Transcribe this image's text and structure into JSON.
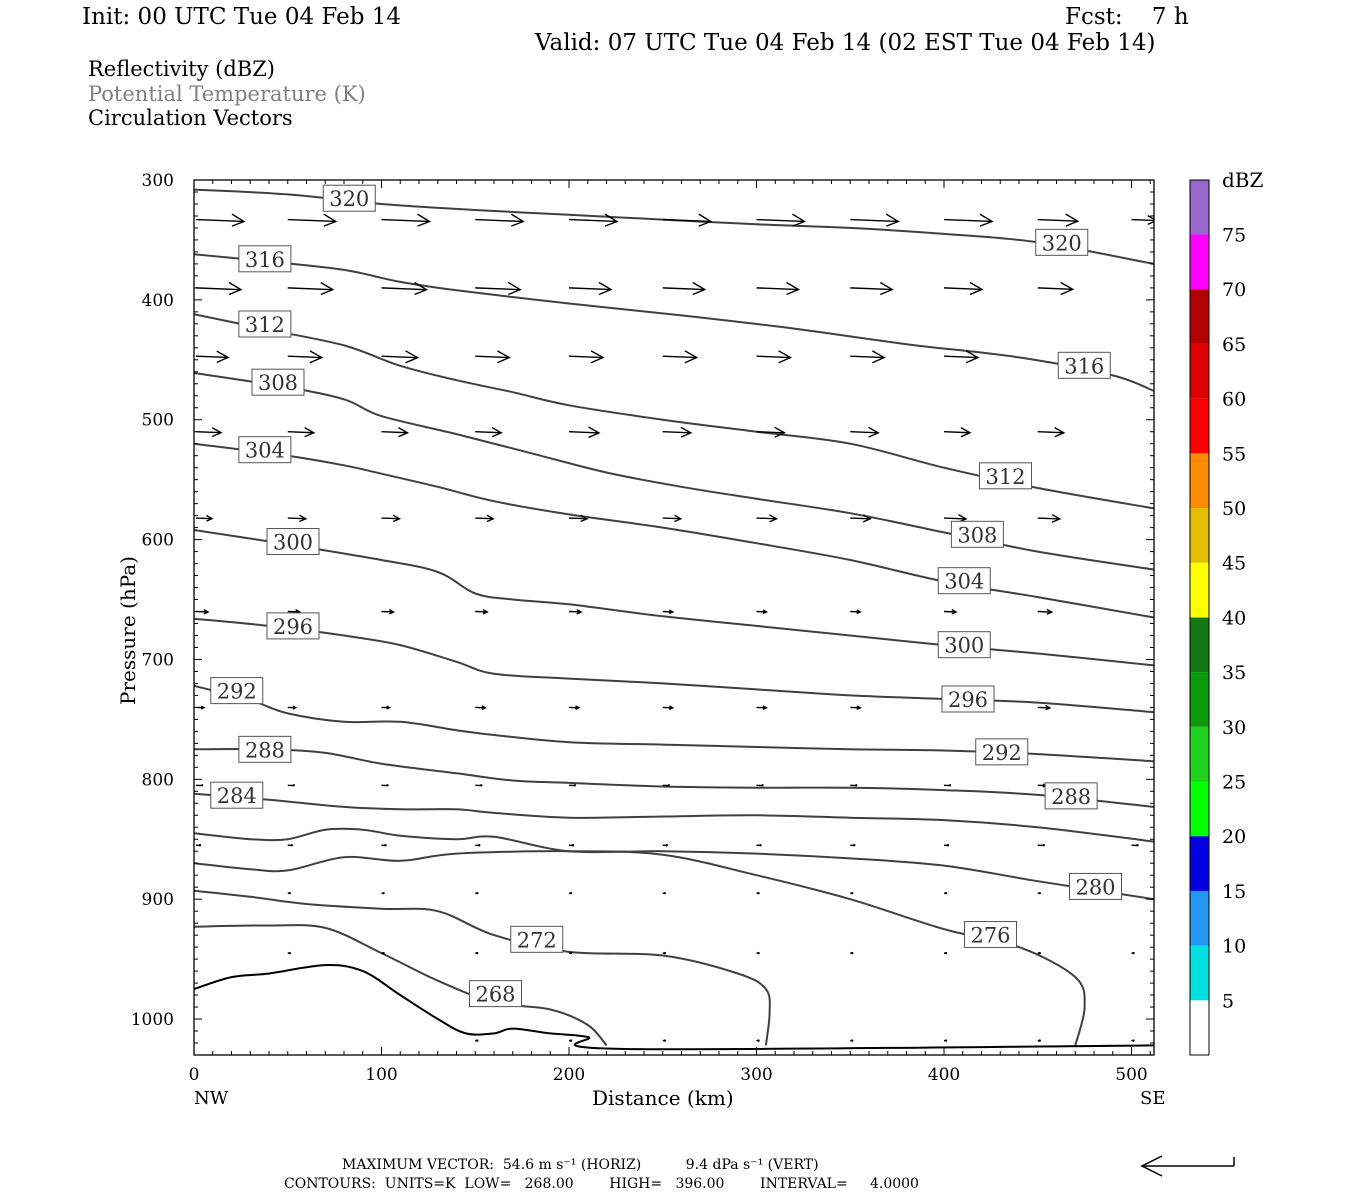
{
  "header": {
    "init": "Init: 00 UTC Tue 04 Feb 14",
    "fcst": "Fcst:    7 h",
    "valid": "Valid: 07 UTC Tue 04 Feb 14 (02 EST Tue 04 Feb 14)",
    "field1": "Reflectivity (dBZ)",
    "field2": "Potential Temperature (K)",
    "field3": "Circulation Vectors"
  },
  "footer": {
    "line1": "MAXIMUM VECTOR:  54.6 m s⁻¹ (HORIZ)          9.4 dPa s⁻¹ (VERT)",
    "line2": "CONTOURS:  UNITS=K  LOW=   268.00        HIGH=   396.00        INTERVAL=     4.0000"
  },
  "colors": {
    "contour": "#404040",
    "vector": "#000000",
    "label_gray": "#808080",
    "scale": [
      "#ffffff",
      "#00e0e0",
      "#2196f3",
      "#0000e0",
      "#00ff00",
      "#1ed21e",
      "#0a9a0a",
      "#147814",
      "#ffff00",
      "#e6be00",
      "#ff8c00",
      "#ff0000",
      "#dd0000",
      "#b40000",
      "#ff00ff",
      "#9966cc",
      "#ffffff"
    ]
  },
  "chart_data": {
    "type": "contour",
    "xlabel": "Distance (km)",
    "ylabel": "Pressure (hPa)",
    "xlim": [
      0,
      512
    ],
    "ylim": [
      1030,
      300
    ],
    "x_ticks": [
      "0",
      "100",
      "200",
      "300",
      "400",
      "500"
    ],
    "x_tick_values": [
      0,
      100,
      200,
      300,
      400,
      500
    ],
    "y_ticks": [
      "300",
      "400",
      "500",
      "600",
      "700",
      "800",
      "900",
      "1000"
    ],
    "y_tick_values": [
      300,
      400,
      500,
      600,
      700,
      800,
      900,
      1000
    ],
    "endpoints": {
      "left": "NW",
      "right": "SE"
    },
    "colorbar": {
      "title": "dBZ",
      "labels": [
        "5",
        "10",
        "15",
        "20",
        "25",
        "30",
        "35",
        "40",
        "45",
        "50",
        "55",
        "60",
        "65",
        "70",
        "75"
      ],
      "values": [
        5,
        10,
        15,
        20,
        25,
        30,
        35,
        40,
        45,
        50,
        55,
        60,
        65,
        70,
        75
      ]
    },
    "theta_contours": [
      {
        "level": 320,
        "points": [
          [
            0,
            308
          ],
          [
            50,
            312
          ],
          [
            100,
            320
          ],
          [
            150,
            325
          ],
          [
            200,
            329
          ],
          [
            250,
            333
          ],
          [
            300,
            337
          ],
          [
            350,
            340
          ],
          [
            400,
            345
          ],
          [
            450,
            352
          ],
          [
            512,
            370
          ]
        ]
      },
      {
        "level": 316,
        "points": [
          [
            0,
            362
          ],
          [
            40,
            368
          ],
          [
            80,
            375
          ],
          [
            110,
            385
          ],
          [
            140,
            392
          ],
          [
            200,
            403
          ],
          [
            260,
            413
          ],
          [
            320,
            424
          ],
          [
            380,
            437
          ],
          [
            440,
            448
          ],
          [
            490,
            463
          ],
          [
            512,
            476
          ]
        ]
      },
      {
        "level": 312,
        "points": [
          [
            0,
            412
          ],
          [
            40,
            425
          ],
          [
            80,
            438
          ],
          [
            110,
            455
          ],
          [
            140,
            467
          ],
          [
            170,
            477
          ],
          [
            200,
            488
          ],
          [
            250,
            500
          ],
          [
            300,
            510
          ],
          [
            350,
            520
          ],
          [
            400,
            540
          ],
          [
            450,
            557
          ],
          [
            512,
            574
          ]
        ]
      },
      {
        "level": 308,
        "points": [
          [
            0,
            461
          ],
          [
            50,
            473
          ],
          [
            80,
            483
          ],
          [
            100,
            497
          ],
          [
            140,
            512
          ],
          [
            180,
            528
          ],
          [
            220,
            544
          ],
          [
            260,
            556
          ],
          [
            300,
            566
          ],
          [
            350,
            578
          ],
          [
            400,
            594
          ],
          [
            450,
            610
          ],
          [
            512,
            625
          ]
        ]
      },
      {
        "level": 304,
        "points": [
          [
            0,
            520
          ],
          [
            50,
            530
          ],
          [
            80,
            538
          ],
          [
            100,
            545
          ],
          [
            130,
            556
          ],
          [
            160,
            568
          ],
          [
            200,
            579
          ],
          [
            250,
            590
          ],
          [
            300,
            603
          ],
          [
            350,
            617
          ],
          [
            400,
            635
          ],
          [
            450,
            648
          ],
          [
            512,
            665
          ]
        ]
      },
      {
        "level": 300,
        "points": [
          [
            0,
            592
          ],
          [
            50,
            604
          ],
          [
            100,
            617
          ],
          [
            130,
            627
          ],
          [
            150,
            645
          ],
          [
            170,
            650
          ],
          [
            200,
            654
          ],
          [
            250,
            664
          ],
          [
            300,
            672
          ],
          [
            350,
            680
          ],
          [
            400,
            688
          ],
          [
            450,
            695
          ],
          [
            512,
            705
          ]
        ]
      },
      {
        "level": 296,
        "points": [
          [
            0,
            666
          ],
          [
            40,
            672
          ],
          [
            80,
            680
          ],
          [
            110,
            688
          ],
          [
            140,
            702
          ],
          [
            160,
            712
          ],
          [
            200,
            716
          ],
          [
            250,
            720
          ],
          [
            300,
            725
          ],
          [
            350,
            730
          ],
          [
            400,
            733
          ],
          [
            450,
            736
          ],
          [
            512,
            744
          ]
        ]
      },
      {
        "level": 292,
        "points": [
          [
            0,
            722
          ],
          [
            30,
            734
          ],
          [
            50,
            745
          ],
          [
            80,
            752
          ],
          [
            110,
            752
          ],
          [
            140,
            759
          ],
          [
            160,
            763
          ],
          [
            200,
            769
          ],
          [
            250,
            771
          ],
          [
            300,
            773
          ],
          [
            350,
            775
          ],
          [
            400,
            776
          ],
          [
            450,
            779
          ],
          [
            512,
            785
          ]
        ]
      },
      {
        "level": 288,
        "points": [
          [
            0,
            775
          ],
          [
            40,
            775
          ],
          [
            70,
            778
          ],
          [
            100,
            787
          ],
          [
            140,
            795
          ],
          [
            170,
            801
          ],
          [
            200,
            803
          ],
          [
            250,
            806
          ],
          [
            300,
            807
          ],
          [
            350,
            807
          ],
          [
            400,
            809
          ],
          [
            450,
            813
          ],
          [
            512,
            823
          ]
        ]
      },
      {
        "level": 284,
        "points": [
          [
            0,
            812
          ],
          [
            40,
            817
          ],
          [
            80,
            823
          ],
          [
            110,
            825
          ],
          [
            140,
            825
          ],
          [
            160,
            828
          ],
          [
            200,
            832
          ],
          [
            250,
            831
          ],
          [
            300,
            830
          ],
          [
            350,
            832
          ],
          [
            400,
            834
          ],
          [
            450,
            840
          ],
          [
            512,
            852
          ]
        ]
      },
      {
        "level": 280,
        "points": [
          [
            0,
            845
          ],
          [
            30,
            850
          ],
          [
            50,
            850
          ],
          [
            70,
            842
          ],
          [
            90,
            842
          ],
          [
            110,
            847
          ],
          [
            140,
            850
          ],
          [
            160,
            848
          ],
          [
            200,
            860
          ],
          [
            250,
            860
          ],
          [
            300,
            862
          ],
          [
            350,
            866
          ],
          [
            400,
            872
          ],
          [
            450,
            885
          ],
          [
            512,
            900
          ]
        ]
      },
      {
        "level": 276,
        "points": [
          [
            0,
            870
          ],
          [
            30,
            875
          ],
          [
            50,
            876
          ],
          [
            80,
            865
          ],
          [
            110,
            868
          ],
          [
            140,
            862
          ],
          [
            200,
            860
          ],
          [
            250,
            863
          ],
          [
            300,
            880
          ],
          [
            350,
            900
          ],
          [
            400,
            925
          ],
          [
            440,
            940
          ],
          [
            470,
            965
          ],
          [
            475,
            990
          ],
          [
            470,
            1022
          ]
        ]
      },
      {
        "level": 272,
        "points": [
          [
            0,
            893
          ],
          [
            30,
            898
          ],
          [
            60,
            904
          ],
          [
            100,
            908
          ],
          [
            130,
            910
          ],
          [
            160,
            930
          ],
          [
            200,
            944
          ],
          [
            250,
            947
          ],
          [
            290,
            962
          ],
          [
            305,
            975
          ],
          [
            307,
            995
          ],
          [
            305,
            1022
          ]
        ]
      },
      {
        "level": 268,
        "points": [
          [
            0,
            923
          ],
          [
            40,
            922
          ],
          [
            70,
            924
          ],
          [
            100,
            945
          ],
          [
            130,
            968
          ],
          [
            160,
            986
          ],
          [
            190,
            992
          ],
          [
            210,
            1005
          ],
          [
            220,
            1022
          ]
        ]
      }
    ],
    "terrain": [
      [
        0,
        975
      ],
      [
        20,
        965
      ],
      [
        40,
        962
      ],
      [
        70,
        955
      ],
      [
        90,
        960
      ],
      [
        110,
        980
      ],
      [
        130,
        1000
      ],
      [
        145,
        1012
      ],
      [
        160,
        1012
      ],
      [
        170,
        1008
      ],
      [
        190,
        1012
      ],
      [
        210,
        1015
      ],
      [
        230,
        1025
      ],
      [
        512,
        1022
      ]
    ],
    "vectors": [
      {
        "p": 333,
        "cols": [
          0,
          50,
          100,
          150,
          200,
          250,
          300,
          350,
          400,
          450,
          500
        ],
        "len": [
          48,
          48,
          48,
          48,
          48,
          48,
          48,
          48,
          48,
          40,
          25
        ]
      },
      {
        "p": 390,
        "cols": [
          0,
          50,
          100,
          150,
          200,
          250,
          300,
          350,
          400,
          450
        ],
        "len": [
          45,
          45,
          45,
          45,
          42,
          42,
          42,
          42,
          38,
          35
        ]
      },
      {
        "p": 447,
        "cols": [
          0,
          50,
          100,
          150,
          200,
          250,
          300,
          350,
          400
        ],
        "len": [
          32,
          34,
          36,
          34,
          34,
          34,
          34,
          34,
          34
        ]
      },
      {
        "p": 510,
        "cols": [
          0,
          50,
          100,
          150,
          200,
          250,
          300,
          350,
          400,
          450
        ],
        "len": [
          25,
          26,
          26,
          26,
          30,
          28,
          28,
          28,
          26,
          26
        ]
      },
      {
        "p": 582,
        "cols": [
          0,
          50,
          100,
          150,
          200,
          250,
          300,
          350,
          400,
          450
        ],
        "len": [
          16,
          18,
          18,
          18,
          18,
          18,
          20,
          20,
          22,
          22
        ]
      },
      {
        "p": 660,
        "cols": [
          0,
          50,
          100,
          150,
          200,
          250,
          300,
          350,
          400,
          450
        ],
        "len": [
          12,
          12,
          12,
          12,
          12,
          10,
          10,
          10,
          12,
          14
        ]
      },
      {
        "p": 740,
        "cols": [
          0,
          50,
          100,
          150,
          200,
          250,
          300,
          350,
          400,
          450
        ],
        "len": [
          8,
          8,
          8,
          10,
          10,
          10,
          10,
          10,
          10,
          12
        ]
      },
      {
        "p": 805,
        "cols": [
          0,
          50,
          100,
          150,
          200,
          250,
          300,
          350,
          400,
          450
        ],
        "len": [
          6,
          6,
          6,
          6,
          6,
          6,
          6,
          6,
          6,
          8
        ]
      },
      {
        "p": 855,
        "cols": [
          0,
          50,
          100,
          150,
          200,
          250,
          300,
          350,
          400,
          450,
          500
        ],
        "len": [
          4,
          4,
          4,
          4,
          4,
          4,
          4,
          4,
          4,
          6,
          6
        ]
      },
      {
        "p": 895,
        "cols": [
          50,
          100,
          150,
          200,
          250,
          300,
          350,
          400,
          450
        ],
        "len": [
          2,
          2,
          2,
          2,
          2,
          2,
          2,
          2,
          2
        ]
      },
      {
        "p": 945,
        "cols": [
          50,
          100,
          150,
          200,
          250,
          300,
          350,
          400,
          450,
          500
        ],
        "len": [
          2,
          2,
          2,
          2,
          2,
          2,
          2,
          2,
          2,
          2
        ]
      },
      {
        "p": 1018,
        "cols": [
          150,
          200,
          250,
          300,
          350,
          400,
          450,
          500
        ],
        "len": [
          2,
          2,
          2,
          2,
          2,
          2,
          2,
          2
        ]
      }
    ]
  },
  "reference_vector": "reference-arrow"
}
